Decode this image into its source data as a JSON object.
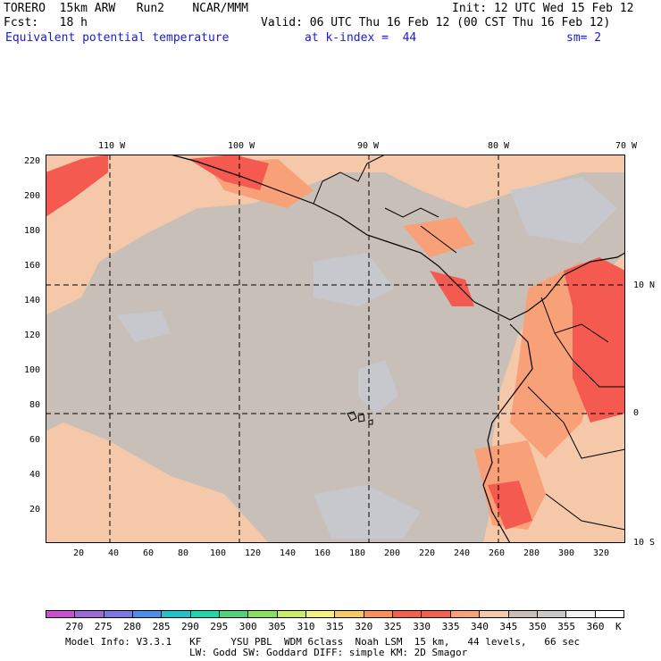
{
  "header": {
    "model": "TORERO  15km ARW   Run2    NCAR/MMM",
    "init": "Init: 12 UTC Wed 15 Feb 12",
    "fcst": "Fcst:   18 h",
    "valid": "Valid: 06 UTC Thu 16 Feb 12 (00 CST Thu 16 Feb 12)",
    "field": "Equivalent potential temperature",
    "level": "at k-index =  44",
    "smooth": "sm= 2"
  },
  "map": {
    "lon_labels": [
      "110 W",
      "100 W",
      "90 W",
      "80 W",
      "70 W"
    ],
    "lat_labels": [
      "10 N",
      "0",
      "10 S"
    ],
    "y_ticks": [
      "220",
      "200",
      "180",
      "160",
      "140",
      "120",
      "100",
      "80",
      "60",
      "40",
      "20"
    ],
    "x_ticks": [
      "20",
      "40",
      "60",
      "80",
      "100",
      "120",
      "140",
      "160",
      "180",
      "200",
      "220",
      "240",
      "260",
      "280",
      "300",
      "320"
    ],
    "colors": {
      "background": "#f5c8aa",
      "gray": "#c8c0b8",
      "light_gray": "#c6c8ce",
      "salmon": "#f8a078",
      "red": "#f45a4f",
      "land_lines": "#000000"
    }
  },
  "colorbar": {
    "labels": [
      "270",
      "275",
      "280",
      "285",
      "290",
      "295",
      "300",
      "305",
      "310",
      "315",
      "320",
      "325",
      "330",
      "335",
      "340",
      "345",
      "350",
      "355",
      "360",
      "K"
    ],
    "colors": [
      "#c84fd2",
      "#9a6ad6",
      "#7a78e2",
      "#4a8ee8",
      "#24c2c8",
      "#22d6a8",
      "#52d07c",
      "#8ade60",
      "#c8ec6a",
      "#f4f080",
      "#f8c868",
      "#f8905e",
      "#f4604e",
      "#f46050",
      "#f8a078",
      "#f4c8ac",
      "#c8c0b8",
      "#c8c8c8",
      "#f0f0f0",
      "#ffffff"
    ]
  },
  "footer": {
    "line1": "Model Info: V3.3.1   KF     YSU PBL  WDM 6class  Noah LSM  15 km,   44 levels,   66 sec",
    "line2": "LW: Godd SW: Goddard DIFF: simple KM: 2D Smagor"
  }
}
